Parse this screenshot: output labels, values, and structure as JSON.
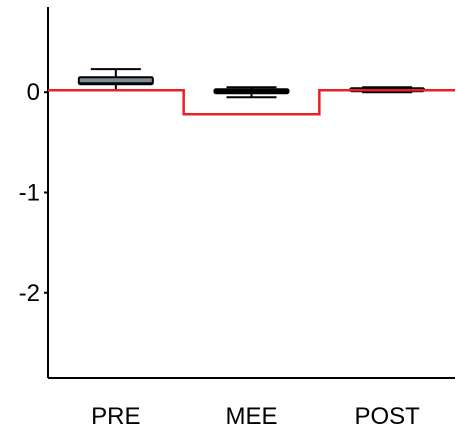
{
  "chart_data": {
    "type": "box",
    "title": "",
    "xlabel": "",
    "ylabel": "",
    "categories": [
      "PRE",
      "MEE",
      "POST"
    ],
    "ylim": [
      -2.85,
      0.85
    ],
    "yticks": [
      {
        "value": 0,
        "label": "0"
      },
      {
        "value": -1,
        "label": "-1"
      },
      {
        "value": -2,
        "label": "-2"
      }
    ],
    "grid": false,
    "boxes": [
      {
        "category": "PRE",
        "min": 0.02,
        "q1": 0.08,
        "median": 0.09,
        "q3": 0.15,
        "max": 0.23,
        "fill": "#7f8c97"
      },
      {
        "category": "MEE",
        "min": -0.05,
        "q1": -0.01,
        "median": 0.0,
        "q3": 0.03,
        "max": 0.05,
        "fill": "#000000"
      },
      {
        "category": "POST",
        "min": 0.0,
        "q1": 0.01,
        "median": 0.02,
        "q3": 0.04,
        "max": 0.05,
        "fill": "#000000"
      }
    ],
    "reference_line": {
      "color": "#e8202a",
      "values": [
        0.02,
        -0.22,
        0.02
      ]
    }
  }
}
